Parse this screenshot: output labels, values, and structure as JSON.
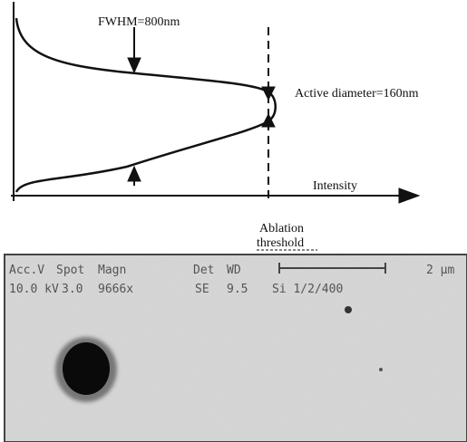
{
  "diagram": {
    "fwhm_label": "FWHM=800nm",
    "active_diameter_label": "Active diameter=160nm",
    "axis_label": "Intensity",
    "threshold_label": [
      "Ablation",
      "threshold"
    ]
  },
  "sem_image": {
    "header_row_1": [
      "Acc.V",
      "Spot",
      "Magn",
      "Det",
      "WD"
    ],
    "header_row_2": [
      "10.0 kV",
      "3.0",
      "9666x",
      "SE",
      "9.5",
      "Si 1/2/400"
    ],
    "scale_bar": "2 µm"
  }
}
